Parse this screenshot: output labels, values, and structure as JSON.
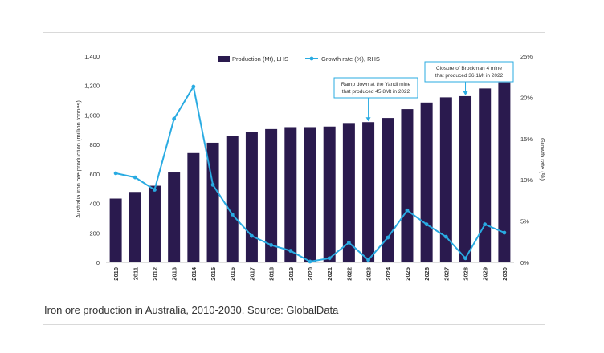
{
  "caption": "Iron ore production in Australia, 2010-2030. Source: GlobalData",
  "chart_data": {
    "type": "bar+line",
    "categories": [
      "2010",
      "2011",
      "2012",
      "2013",
      "2014",
      "2015",
      "2016",
      "2017",
      "2018",
      "2019",
      "2020",
      "2021",
      "2022",
      "2023",
      "2024",
      "2025",
      "2026",
      "2027",
      "2028",
      "2029",
      "2030"
    ],
    "series": [
      {
        "name": "Production (Mt), LHS",
        "type": "bar",
        "axis": "left",
        "color": "#2a1a4e",
        "values": [
          433,
          478,
          520,
          610,
          742,
          812,
          860,
          887,
          905,
          918,
          918,
          922,
          946,
          952,
          980,
          1040,
          1085,
          1120,
          1128,
          1180,
          1222
        ]
      },
      {
        "name": "Growth rate (%), RHS",
        "type": "line",
        "axis": "right",
        "color": "#29abe2",
        "values": [
          10.8,
          10.3,
          8.8,
          17.4,
          21.3,
          9.4,
          5.8,
          3.2,
          2.1,
          1.4,
          0.1,
          0.5,
          2.4,
          0.3,
          3.0,
          6.3,
          4.6,
          3.1,
          0.5,
          4.6,
          3.6
        ]
      }
    ],
    "y_left": {
      "label": "Australia iron ore production (million tonnes)",
      "ylim": [
        0,
        1400
      ],
      "ticks": [
        "0",
        "200",
        "400",
        "600",
        "800",
        "1,000",
        "1,200",
        "1,400"
      ]
    },
    "y_right": {
      "label": "Growth rate (%)",
      "ylim": [
        0,
        25
      ],
      "ticks": [
        "0%",
        "5%",
        "10%",
        "15%",
        "20%",
        "25%"
      ]
    },
    "legend_position": "top",
    "annotations": [
      {
        "lines": [
          "Ramp down at the Yandi mine",
          "that produced 45.8Mt in 2022"
        ],
        "target": "2023"
      },
      {
        "lines": [
          "Closure of Brockman 4 mine",
          "that produced 36.1Mt in 2022"
        ],
        "target": "2028"
      }
    ],
    "grid": false
  }
}
